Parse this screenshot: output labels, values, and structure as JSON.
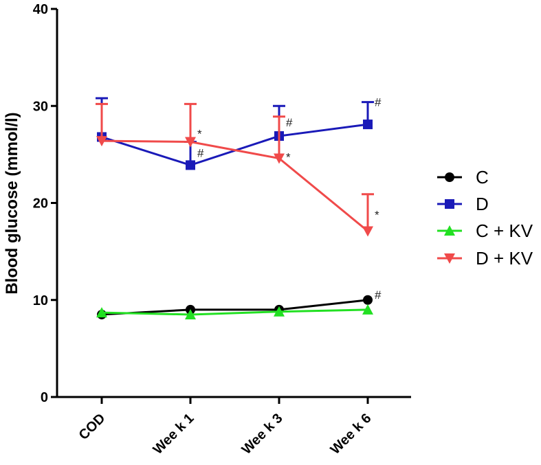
{
  "chart_data": {
    "type": "line",
    "title": "",
    "xlabel": "",
    "ylabel": "Blood glucose (mmol/l)",
    "ylim": [
      0,
      40
    ],
    "yticks": [
      0,
      10,
      20,
      30,
      40
    ],
    "categories": [
      "COD",
      "Wee k 1",
      "Wee k 3",
      "Wee k 6"
    ],
    "legend_position": "right",
    "series": [
      {
        "name": "C",
        "color": "#000000",
        "marker": "circle",
        "values": [
          8.5,
          9.0,
          9.0,
          10.0
        ],
        "error_up": [
          0.2,
          0.2,
          0.2,
          0.2
        ],
        "annotations": [
          "",
          "",
          "",
          "#"
        ]
      },
      {
        "name": "D",
        "color": "#1a1ab8",
        "marker": "square",
        "values": [
          26.8,
          23.9,
          26.9,
          28.1
        ],
        "error_up": [
          4.0,
          2.4,
          3.1,
          2.3
        ],
        "annotations": [
          "",
          "#",
          "#",
          "#"
        ]
      },
      {
        "name": "C + KV",
        "color": "#22e022",
        "marker": "triangle-up",
        "values": [
          8.7,
          8.5,
          8.8,
          9.0
        ],
        "error_up": [
          0.1,
          0.1,
          0.1,
          0.1
        ],
        "annotations": [
          "",
          "",
          "",
          ""
        ]
      },
      {
        "name": "D + KV",
        "color": "#f04a4a",
        "marker": "triangle-down",
        "values": [
          26.4,
          26.3,
          24.6,
          17.1
        ],
        "error_up": [
          3.8,
          3.9,
          4.3,
          3.8
        ],
        "annotations": [
          "",
          "*",
          "*",
          "*"
        ]
      }
    ]
  }
}
